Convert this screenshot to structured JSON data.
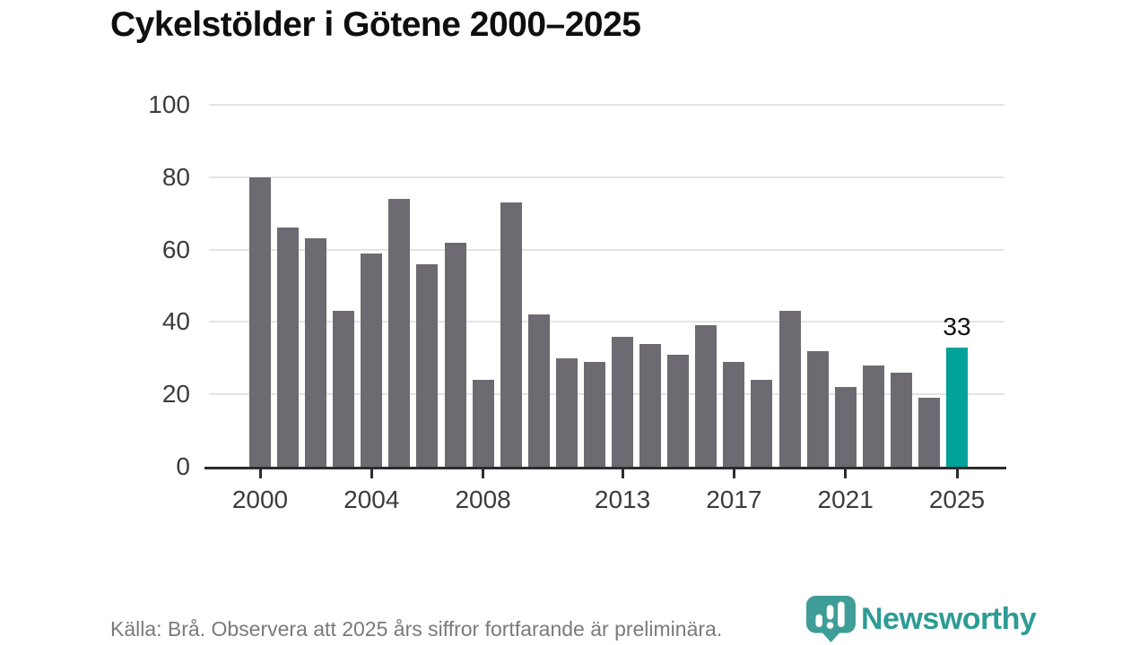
{
  "title": "Cykelstölder i Götene 2000–2025",
  "footer": {
    "source_text": "Källa: Brå. Observera att 2025 års siffror fortfarande är preliminära."
  },
  "branding": {
    "logo_text": "Newsworthy",
    "logo_icon": "newsworthy-pin-chart-icon",
    "brand_color": "#2d9c95"
  },
  "colors": {
    "bar": "#6d6a71",
    "highlight": "#00a29a",
    "grid": "#e4e4e4",
    "axis": "#2d2d2d"
  },
  "chart_data": {
    "type": "bar",
    "title": "Cykelstölder i Götene 2000–2025",
    "categories": [
      2000,
      2001,
      2002,
      2003,
      2004,
      2005,
      2006,
      2007,
      2008,
      2009,
      2010,
      2011,
      2012,
      2013,
      2014,
      2015,
      2016,
      2017,
      2018,
      2019,
      2020,
      2021,
      2022,
      2023,
      2024,
      2025
    ],
    "values": [
      80,
      66,
      63,
      43,
      59,
      74,
      56,
      62,
      24,
      73,
      42,
      30,
      29,
      36,
      34,
      31,
      39,
      29,
      24,
      43,
      32,
      22,
      28,
      26,
      19,
      33
    ],
    "highlight_index": 25,
    "highlight_label": "33",
    "xlabel": "",
    "ylabel": "",
    "ylim": [
      0,
      100
    ],
    "yticks": [
      0,
      20,
      40,
      60,
      80,
      100
    ],
    "xticks": [
      2000,
      2004,
      2008,
      2013,
      2017,
      2021,
      2025
    ],
    "grid": true,
    "legend": "none",
    "bar_color": "#6d6a71",
    "highlight_color": "#00a29a"
  }
}
